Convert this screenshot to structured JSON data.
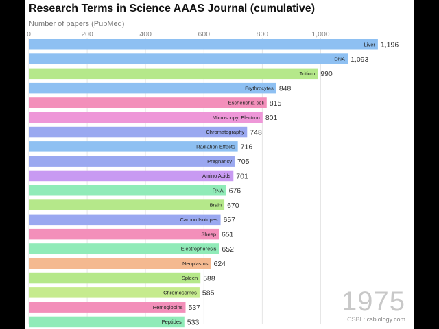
{
  "chart_data": {
    "type": "bar",
    "orientation": "horizontal",
    "title": "Research Terms in Science AAAS Journal (cumulative)",
    "xlabel": "Number of papers (PubMed)",
    "xlim": [
      0,
      1200
    ],
    "ticks": [
      0,
      200,
      400,
      600,
      800,
      1000
    ],
    "tick_labels": [
      "0",
      "200",
      "400",
      "600",
      "800",
      "1,000"
    ],
    "bars": [
      {
        "label": "Liver",
        "value": 1196,
        "value_label": "1,196",
        "color": "#8ec0f2"
      },
      {
        "label": "DNA",
        "value": 1093,
        "value_label": "1,093",
        "color": "#8ec0f2"
      },
      {
        "label": "Tritium",
        "value": 990,
        "value_label": "990",
        "color": "#b5e88a"
      },
      {
        "label": "Erythrocytes",
        "value": 848,
        "value_label": "848",
        "color": "#8ec0f2"
      },
      {
        "label": "Escherichia coli",
        "value": 815,
        "value_label": "815",
        "color": "#f38fba"
      },
      {
        "label": "Microscopy, Electron",
        "value": 801,
        "value_label": "801",
        "color": "#ee97d8"
      },
      {
        "label": "Chromatography",
        "value": 748,
        "value_label": "748",
        "color": "#9aa8f0"
      },
      {
        "label": "Radiation Effects",
        "value": 716,
        "value_label": "716",
        "color": "#8ec0f2"
      },
      {
        "label": "Pregnancy",
        "value": 705,
        "value_label": "705",
        "color": "#9aa8f0"
      },
      {
        "label": "Amino Acids",
        "value": 701,
        "value_label": "701",
        "color": "#c89af2"
      },
      {
        "label": "RNA",
        "value": 676,
        "value_label": "676",
        "color": "#90ebb8"
      },
      {
        "label": "Brain",
        "value": 670,
        "value_label": "670",
        "color": "#b5e88a"
      },
      {
        "label": "Carbon Isotopes",
        "value": 657,
        "value_label": "657",
        "color": "#9aa8f0"
      },
      {
        "label": "Sheep",
        "value": 651,
        "value_label": "651",
        "color": "#f38fba"
      },
      {
        "label": "Electrophoresis",
        "value": 652,
        "value_label": "652",
        "color": "#90ebb8"
      },
      {
        "label": "Neoplasms",
        "value": 624,
        "value_label": "624",
        "color": "#f4b990"
      },
      {
        "label": "Spleen",
        "value": 588,
        "value_label": "588",
        "color": "#b5e88a"
      },
      {
        "label": "Chromosomes",
        "value": 585,
        "value_label": "585",
        "color": "#c6eb8e"
      },
      {
        "label": "Hemoglobins",
        "value": 537,
        "value_label": "537",
        "color": "#f38fba"
      },
      {
        "label": "Peptides",
        "value": 533,
        "value_label": "533",
        "color": "#90ebb8"
      }
    ],
    "year": "1975",
    "source": "CSBL: csbiology.com"
  }
}
